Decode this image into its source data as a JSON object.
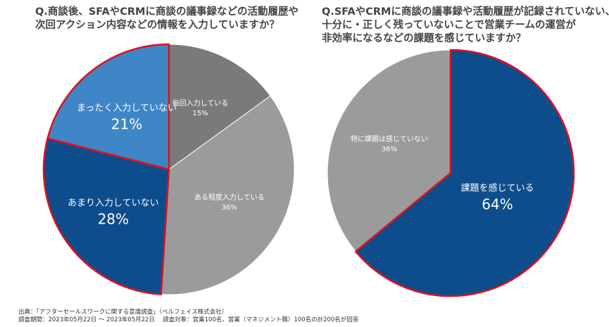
{
  "chart_data": [
    {
      "type": "pie",
      "title": "Q.商談後、SFAやCRMに商談の議事録などの活動履歴や\n次回アクション内容などの情報を入力していますか？",
      "start": "top",
      "direction": "clockwise",
      "slices": [
        {
          "label": "毎回入力している",
          "value": 15,
          "value_label": "15%",
          "color": "#7a7a7a",
          "highlight": false
        },
        {
          "label": "ある程度入力している",
          "value": 36,
          "value_label": "36%",
          "color": "#9b9b9b",
          "highlight": false
        },
        {
          "label": "あまり入力していない",
          "value": 28,
          "value_label": "28%",
          "color": "#0e4d8c",
          "highlight": true
        },
        {
          "label": "まったく入力していない",
          "value": 21,
          "value_label": "21%",
          "color": "#3f86c6",
          "highlight": true
        }
      ]
    },
    {
      "type": "pie",
      "title": "Q.SFAやCRMに商談の議事録や活動履歴が記録されていない、\n十分に・正しく残っていないことで営業チームの運営が\n非効率になるなどの課題を感じていますか？",
      "start": "top",
      "direction": "clockwise",
      "slices": [
        {
          "label": "課題を感じている",
          "value": 64,
          "value_label": "64%",
          "color": "#0e4d8c",
          "highlight": true
        },
        {
          "label": "特に課題は感じていない",
          "value": 36,
          "value_label": "36%",
          "color": "#9b9b9b",
          "highlight": false
        }
      ]
    }
  ],
  "highlight_color": "#e0101e",
  "footer": {
    "source": "出典：「アフターセールスワークに関する意識調査」（ベルフェイス株式会社）",
    "period": "調査期間：2023年05月22日 ～ 2023年05月22日　 調査対象：営業100名、営業（マネジメント職）100名の計200名が回答"
  }
}
